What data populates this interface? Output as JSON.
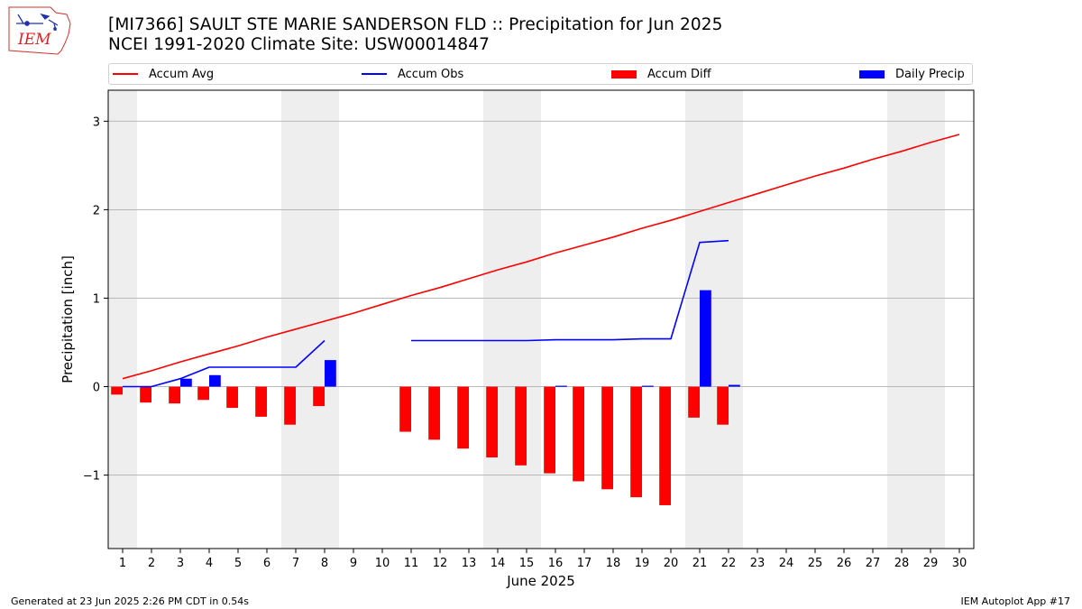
{
  "header": {
    "title": "[MI7366] SAULT STE MARIE SANDERSON FLD :: Precipitation for Jun 2025",
    "subtitle": "NCEI 1991-2020 Climate Site: USW00014847",
    "logo_text": "IEM"
  },
  "footer": {
    "generated": "Generated at 23 Jun 2025 2:26 PM CDT in 0.54s",
    "app": "IEM Autoplot App #17"
  },
  "legend": [
    {
      "label": "Accum Avg",
      "kind": "line",
      "color": "#ff0000"
    },
    {
      "label": "Accum Obs",
      "kind": "line",
      "color": "#0000ff"
    },
    {
      "label": "Accum Diff",
      "kind": "patch",
      "color": "#ff0000"
    },
    {
      "label": "Daily Precip",
      "kind": "patch",
      "color": "#0000ff"
    }
  ],
  "chart_data": {
    "type": "bar",
    "xlabel": "June 2025",
    "ylabel": "Precipitation [inch]",
    "xlim": [
      0.5,
      30.5
    ],
    "ylim": [
      -1.83,
      3.35
    ],
    "xticks": [
      1,
      2,
      3,
      4,
      5,
      6,
      7,
      8,
      9,
      10,
      11,
      12,
      13,
      14,
      15,
      16,
      17,
      18,
      19,
      20,
      21,
      22,
      23,
      24,
      25,
      26,
      27,
      28,
      29,
      30
    ],
    "yticks": [
      -1,
      0,
      1,
      2,
      3
    ],
    "ytick_labels": [
      "−1",
      "0",
      "1",
      "2",
      "3"
    ],
    "grid": "horizontal",
    "legend_position": "top",
    "weekend_shading": [
      [
        1,
        1
      ],
      [
        7,
        8
      ],
      [
        14,
        15
      ],
      [
        21,
        22
      ],
      [
        28,
        29
      ]
    ],
    "colors": {
      "avg": "#ff0000",
      "obs": "#0000ff",
      "diff": "#ff0000",
      "daily": "#0000ff",
      "weekend": "#eeeeee",
      "grid": "#b0b0b0"
    },
    "series": [
      {
        "name": "Accum Avg",
        "kind": "line",
        "x": [
          1,
          2,
          3,
          4,
          5,
          6,
          7,
          8,
          9,
          10,
          11,
          12,
          13,
          14,
          15,
          16,
          17,
          18,
          19,
          20,
          21,
          22,
          23,
          24,
          25,
          26,
          27,
          28,
          29,
          30
        ],
        "values": [
          0.09,
          0.18,
          0.28,
          0.37,
          0.46,
          0.56,
          0.65,
          0.74,
          0.83,
          0.93,
          1.03,
          1.12,
          1.22,
          1.32,
          1.41,
          1.51,
          1.6,
          1.69,
          1.79,
          1.88,
          1.98,
          2.08,
          2.18,
          2.28,
          2.38,
          2.47,
          2.57,
          2.66,
          2.76,
          2.85
        ]
      },
      {
        "name": "Accum Obs",
        "kind": "line",
        "x": [
          1,
          2,
          3,
          4,
          5,
          6,
          7,
          8,
          9,
          10,
          11,
          12,
          13,
          14,
          15,
          16,
          17,
          18,
          19,
          20,
          21,
          22
        ],
        "values": [
          0.0,
          0.0,
          0.09,
          0.22,
          0.22,
          0.22,
          0.22,
          0.52,
          null,
          null,
          0.52,
          0.52,
          0.52,
          0.52,
          0.52,
          0.53,
          0.53,
          0.53,
          0.54,
          0.54,
          1.63,
          1.65
        ]
      },
      {
        "name": "Accum Diff",
        "kind": "bar",
        "x": [
          1,
          2,
          3,
          4,
          5,
          6,
          7,
          8,
          11,
          12,
          13,
          14,
          15,
          16,
          17,
          18,
          19,
          20,
          21,
          22
        ],
        "values": [
          -0.09,
          -0.18,
          -0.19,
          -0.15,
          -0.24,
          -0.34,
          -0.43,
          -0.22,
          -0.51,
          -0.6,
          -0.7,
          -0.8,
          -0.89,
          -0.98,
          -1.07,
          -1.16,
          -1.25,
          -1.34,
          -0.35,
          -0.43
        ]
      },
      {
        "name": "Daily Precip",
        "kind": "bar",
        "x": [
          1,
          2,
          3,
          4,
          5,
          6,
          7,
          8,
          9,
          10,
          11,
          12,
          13,
          14,
          15,
          16,
          17,
          18,
          19,
          20,
          21,
          22
        ],
        "values": [
          0.0,
          0.0,
          0.09,
          0.13,
          0.0,
          0.0,
          0.0,
          0.3,
          0.0,
          0.0,
          0.0,
          0.0,
          0.0,
          0.0,
          0.0,
          0.01,
          0.0,
          0.0,
          0.01,
          0.0,
          1.09,
          0.02
        ]
      }
    ]
  }
}
